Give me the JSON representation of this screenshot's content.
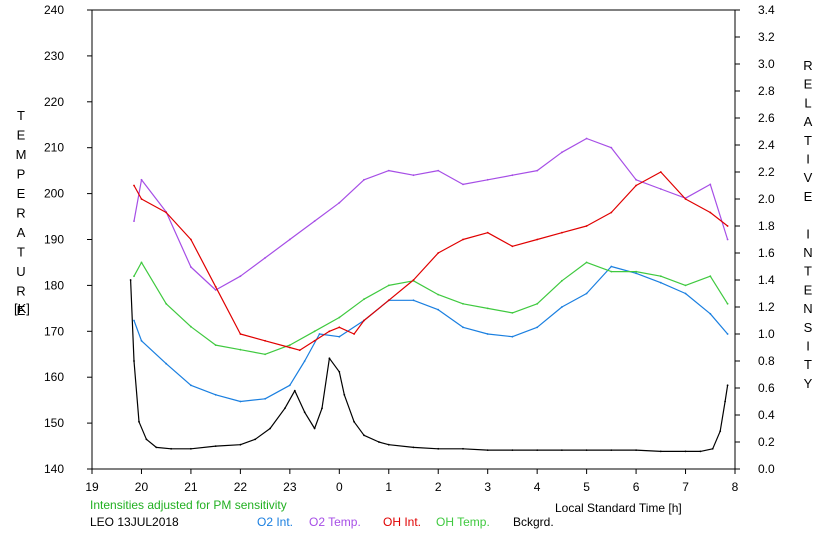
{
  "chart_data": {
    "type": "line",
    "left_axis": {
      "label": "TEMPERATURE",
      "unit": "[K]",
      "range": [
        140,
        240
      ],
      "ticks": [
        140,
        150,
        160,
        170,
        180,
        190,
        200,
        210,
        220,
        230,
        240
      ]
    },
    "right_axis": {
      "label": "RELATIVE INTENSITY",
      "range": [
        0.0,
        3.4
      ],
      "ticks": [
        "0.0",
        "0.2",
        "0.4",
        "0.6",
        "0.8",
        "1.0",
        "1.2",
        "1.4",
        "1.6",
        "1.8",
        "2.0",
        "2.2",
        "2.4",
        "2.6",
        "2.8",
        "3.0",
        "3.2",
        "3.4"
      ]
    },
    "x_axis": {
      "label": "Local Standard Time [h]",
      "range": [
        0,
        13
      ],
      "ticks": [
        "19",
        "20",
        "21",
        "22",
        "23",
        "0",
        "1",
        "2",
        "3",
        "4",
        "5",
        "6",
        "7",
        "8"
      ]
    },
    "note": "Intensities adjusted for PM sensitivity",
    "station_date": "LEO 13JUL2018",
    "grid": false,
    "colors": {
      "o2_int": "#1a7fe0",
      "o2_temp": "#a64ee6",
      "oh_int": "#e00000",
      "oh_temp": "#3fc93f",
      "bckgrd": "#000000",
      "note": "#22b022"
    },
    "series": [
      {
        "name": "O2 Int.",
        "color_key": "o2_int",
        "axis": "right",
        "x": [
          0.85,
          1.0,
          1.5,
          2.0,
          2.5,
          3.0,
          3.5,
          4.0,
          4.3,
          4.6,
          5.0,
          5.5,
          6.0,
          6.5,
          7.0,
          7.5,
          8.0,
          8.5,
          9.0,
          9.5,
          10.0,
          10.5,
          11.0,
          11.5,
          12.0,
          12.5,
          12.85
        ],
        "y": [
          1.1,
          0.95,
          0.78,
          0.62,
          0.55,
          0.5,
          0.52,
          0.62,
          0.8,
          1.0,
          0.98,
          1.1,
          1.25,
          1.25,
          1.18,
          1.05,
          1.0,
          0.98,
          1.05,
          1.2,
          1.3,
          1.5,
          1.45,
          1.38,
          1.3,
          1.15,
          1.0
        ]
      },
      {
        "name": "O2 Temp.",
        "color_key": "o2_temp",
        "axis": "left",
        "x": [
          0.85,
          1.0,
          1.5,
          2.0,
          2.5,
          3.0,
          3.5,
          4.0,
          4.5,
          5.0,
          5.5,
          6.0,
          6.5,
          7.0,
          7.5,
          8.0,
          8.5,
          9.0,
          9.5,
          10.0,
          10.5,
          11.0,
          11.5,
          12.0,
          12.5,
          12.85
        ],
        "y": [
          194,
          203,
          196,
          184,
          179,
          182,
          186,
          190,
          194,
          198,
          203,
          205,
          204,
          205,
          202,
          203,
          204,
          205,
          209,
          212,
          210,
          203,
          201,
          199,
          202,
          190
        ]
      },
      {
        "name": "OH Int.",
        "color_key": "oh_int",
        "axis": "right",
        "x": [
          0.85,
          1.0,
          1.5,
          2.0,
          2.5,
          3.0,
          3.5,
          4.0,
          4.2,
          4.5,
          4.8,
          5.0,
          5.3,
          5.5,
          6.0,
          6.5,
          7.0,
          7.5,
          8.0,
          8.5,
          9.0,
          9.5,
          10.0,
          10.5,
          11.0,
          11.5,
          12.0,
          12.5,
          12.85
        ],
        "y": [
          2.1,
          2.0,
          1.9,
          1.7,
          1.35,
          1.0,
          0.95,
          0.9,
          0.88,
          0.95,
          1.02,
          1.05,
          1.0,
          1.1,
          1.25,
          1.4,
          1.6,
          1.7,
          1.75,
          1.65,
          1.7,
          1.75,
          1.8,
          1.9,
          2.1,
          2.2,
          2.0,
          1.9,
          1.8
        ]
      },
      {
        "name": "OH Temp.",
        "color_key": "oh_temp",
        "axis": "left",
        "x": [
          0.85,
          1.0,
          1.5,
          2.0,
          2.5,
          3.0,
          3.5,
          4.0,
          4.5,
          5.0,
          5.5,
          6.0,
          6.5,
          7.0,
          7.5,
          8.0,
          8.5,
          9.0,
          9.5,
          10.0,
          10.5,
          11.0,
          11.5,
          12.0,
          12.5,
          12.85
        ],
        "y": [
          182,
          185,
          176,
          171,
          167,
          166,
          165,
          167,
          170,
          173,
          177,
          180,
          181,
          178,
          176,
          175,
          174,
          176,
          181,
          185,
          183,
          183,
          182,
          180,
          182,
          176
        ]
      },
      {
        "name": "Bckgrd.",
        "color_key": "bckgrd",
        "axis": "right",
        "x": [
          0.78,
          0.85,
          0.95,
          1.1,
          1.3,
          1.6,
          2.0,
          2.5,
          3.0,
          3.3,
          3.6,
          3.9,
          4.1,
          4.3,
          4.5,
          4.65,
          4.8,
          5.0,
          5.1,
          5.3,
          5.5,
          5.8,
          6.0,
          6.5,
          7.0,
          7.5,
          8.0,
          8.5,
          9.0,
          9.5,
          10.0,
          10.5,
          11.0,
          11.5,
          12.0,
          12.3,
          12.55,
          12.7,
          12.8,
          12.85
        ],
        "y": [
          1.4,
          0.8,
          0.35,
          0.22,
          0.16,
          0.15,
          0.15,
          0.17,
          0.18,
          0.22,
          0.3,
          0.45,
          0.58,
          0.42,
          0.3,
          0.45,
          0.82,
          0.72,
          0.55,
          0.35,
          0.25,
          0.2,
          0.18,
          0.16,
          0.15,
          0.15,
          0.14,
          0.14,
          0.14,
          0.14,
          0.14,
          0.14,
          0.14,
          0.13,
          0.13,
          0.13,
          0.15,
          0.28,
          0.5,
          0.62
        ]
      }
    ]
  }
}
